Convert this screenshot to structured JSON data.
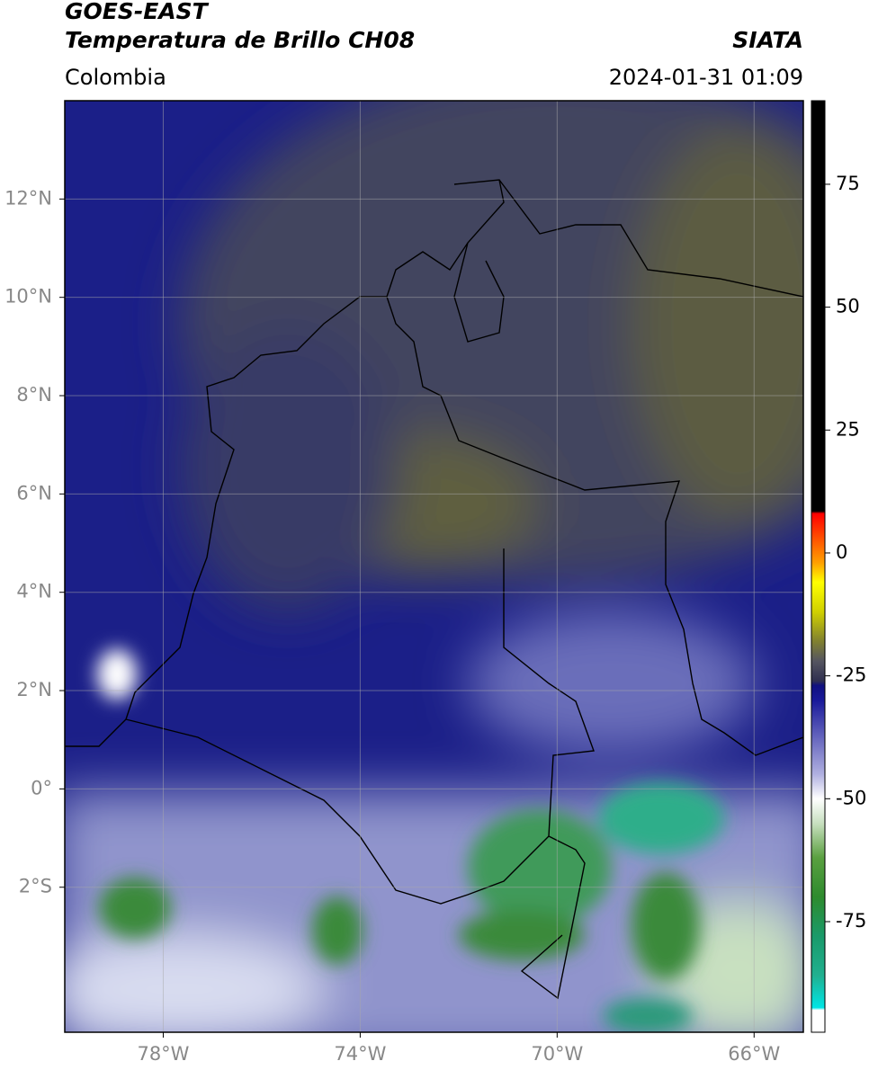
{
  "header": {
    "title": "GOES-EAST",
    "subtitle": "Temperatura de Brillo CH08",
    "source": "SIATA",
    "region": "Colombia",
    "datetime": "2024-01-31 01:09"
  },
  "chart_data": {
    "type": "map",
    "xlim": [
      -80,
      -65
    ],
    "xticks": [
      {
        "value": -78,
        "label": "78°W"
      },
      {
        "value": -74,
        "label": "74°W"
      },
      {
        "value": -70,
        "label": "70°W"
      },
      {
        "value": -66,
        "label": "66°W"
      }
    ],
    "ylim": [
      -4.95,
      14
    ],
    "yticks": [
      {
        "value": 12,
        "label": "12°N"
      },
      {
        "value": 10,
        "label": "10°N"
      },
      {
        "value": 8,
        "label": "8°N"
      },
      {
        "value": 6,
        "label": "6°N"
      },
      {
        "value": 4,
        "label": "4°N"
      },
      {
        "value": 2,
        "label": "2°N"
      },
      {
        "value": 0,
        "label": "0°"
      },
      {
        "value": -2,
        "label": "2°S"
      }
    ],
    "grid": true,
    "colorbar": {
      "lim": [
        -97.5,
        92
      ],
      "ticks": [
        75,
        50,
        25,
        0,
        -25,
        -50,
        -75
      ],
      "stops": [
        {
          "value": -97.5,
          "color": "#ffffff"
        },
        {
          "value": -93,
          "color": "#ffffff"
        },
        {
          "value": -92.5,
          "color": "#00e5e5"
        },
        {
          "value": -86,
          "color": "#20b090"
        },
        {
          "value": -78,
          "color": "#1a9a6a"
        },
        {
          "value": -70,
          "color": "#2e8b2e"
        },
        {
          "value": -62,
          "color": "#5aa040"
        },
        {
          "value": -55,
          "color": "#c8e0c0"
        },
        {
          "value": -50,
          "color": "#ffffff"
        },
        {
          "value": -45,
          "color": "#b0b0e0"
        },
        {
          "value": -38,
          "color": "#6a6ac0"
        },
        {
          "value": -30,
          "color": "#1a1a9a"
        },
        {
          "value": -27,
          "color": "#101080"
        },
        {
          "value": -26,
          "color": "#303050"
        },
        {
          "value": -22,
          "color": "#555560"
        },
        {
          "value": -18,
          "color": "#808030"
        },
        {
          "value": -12,
          "color": "#d0d000"
        },
        {
          "value": -6,
          "color": "#ffff00"
        },
        {
          "value": -2,
          "color": "#ffa000"
        },
        {
          "value": 4,
          "color": "#ff4000"
        },
        {
          "value": 8,
          "color": "#ff0000"
        },
        {
          "value": 8.5,
          "color": "#000000"
        },
        {
          "value": 92,
          "color": "#000000"
        }
      ]
    }
  }
}
